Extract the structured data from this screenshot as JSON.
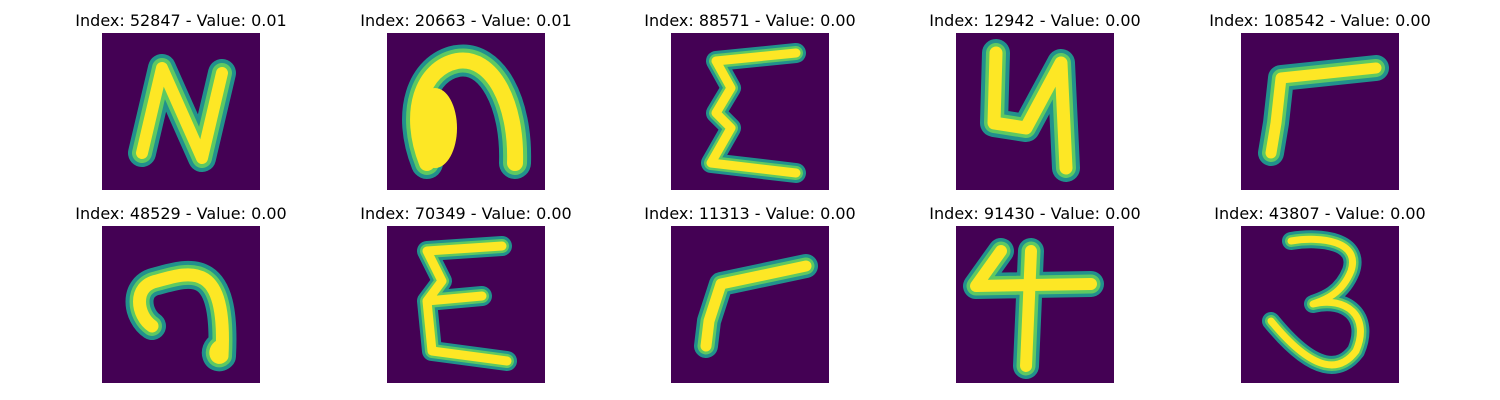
{
  "colors": {
    "background": "#440154",
    "stroke_edge": "#21918c",
    "stroke_mid": "#5ec962",
    "stroke_core": "#fde725"
  },
  "panels": [
    {
      "index_label": "Index: 52847 - Value: 0.01",
      "glyph": "letter-n-icon"
    },
    {
      "index_label": "Index: 20663 - Value: 0.01",
      "glyph": "blob-arch-icon"
    },
    {
      "index_label": "Index: 88571 - Value: 0.00",
      "glyph": "sigma-zigzag-icon"
    },
    {
      "index_label": "Index: 12942 - Value: 0.00",
      "glyph": "digit-4-icon"
    },
    {
      "index_label": "Index: 108542 - Value: 0.00",
      "glyph": "corner-hook-icon"
    },
    {
      "index_label": "Index: 48529 - Value: 0.00",
      "glyph": "hook-loop-icon"
    },
    {
      "index_label": "Index: 70349 - Value: 0.00",
      "glyph": "sigma-zigzag-icon"
    },
    {
      "index_label": "Index: 11313 - Value: 0.00",
      "glyph": "corner-hook-icon"
    },
    {
      "index_label": "Index: 91430 - Value: 0.00",
      "glyph": "digit-4-icon"
    },
    {
      "index_label": "Index: 43807 - Value: 0.00",
      "glyph": "digit-3-icon"
    }
  ]
}
